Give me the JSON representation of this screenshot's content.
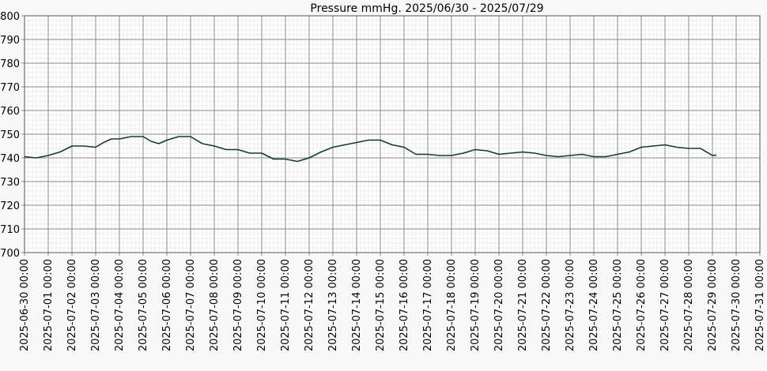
{
  "chart_data": {
    "type": "line",
    "title": "Pressure mmHg. 2025/06/30 - 2025/07/29",
    "xlabel": "",
    "ylabel": "",
    "ylim": [
      700,
      800
    ],
    "yticks": [
      "700",
      "710",
      "720",
      "730",
      "740",
      "750",
      "760",
      "770",
      "780",
      "790",
      "800"
    ],
    "xticks": [
      "2025-06-30 00:00",
      "2025-07-01 00:00",
      "2025-07-02 00:00",
      "2025-07-03 00:00",
      "2025-07-04 00:00",
      "2025-07-05 00:00",
      "2025-07-06 00:00",
      "2025-07-07 00:00",
      "2025-07-08 00:00",
      "2025-07-09 00:00",
      "2025-07-10 00:00",
      "2025-07-11 00:00",
      "2025-07-12 00:00",
      "2025-07-13 00:00",
      "2025-07-14 00:00",
      "2025-07-15 00:00",
      "2025-07-16 00:00",
      "2025-07-17 00:00",
      "2025-07-18 00:00",
      "2025-07-19 00:00",
      "2025-07-20 00:00",
      "2025-07-21 00:00",
      "2025-07-22 00:00",
      "2025-07-23 00:00",
      "2025-07-24 00:00",
      "2025-07-25 00:00",
      "2025-07-26 00:00",
      "2025-07-27 00:00",
      "2025-07-28 00:00",
      "2025-07-29 00:00",
      "2025-07-30 00:00",
      "2025-07-31 00:00"
    ],
    "grid": true,
    "line_color": "#0b3d3a",
    "series": [
      {
        "x": [
          "2025-06-30 00:00",
          "2025-06-30 12:00",
          "2025-07-01 00:00",
          "2025-07-01 12:00",
          "2025-07-02 00:00",
          "2025-07-02 12:00",
          "2025-07-03 00:00",
          "2025-07-03 08:00",
          "2025-07-03 16:00",
          "2025-07-04 00:00",
          "2025-07-04 12:00",
          "2025-07-05 00:00",
          "2025-07-05 08:00",
          "2025-07-05 16:00",
          "2025-07-06 00:00",
          "2025-07-06 12:00",
          "2025-07-07 00:00",
          "2025-07-07 12:00",
          "2025-07-08 00:00",
          "2025-07-08 12:00",
          "2025-07-09 00:00",
          "2025-07-09 12:00",
          "2025-07-10 00:00",
          "2025-07-10 12:00",
          "2025-07-11 00:00",
          "2025-07-11 12:00",
          "2025-07-12 00:00",
          "2025-07-12 12:00",
          "2025-07-13 00:00",
          "2025-07-13 12:00",
          "2025-07-14 00:00",
          "2025-07-14 12:00",
          "2025-07-15 00:00",
          "2025-07-15 12:00",
          "2025-07-16 00:00",
          "2025-07-16 12:00",
          "2025-07-17 00:00",
          "2025-07-17 12:00",
          "2025-07-18 00:00",
          "2025-07-18 12:00",
          "2025-07-19 00:00",
          "2025-07-19 12:00",
          "2025-07-20 00:00",
          "2025-07-20 12:00",
          "2025-07-21 00:00",
          "2025-07-21 12:00",
          "2025-07-22 00:00",
          "2025-07-22 12:00",
          "2025-07-23 00:00",
          "2025-07-23 12:00",
          "2025-07-24 00:00",
          "2025-07-24 12:00",
          "2025-07-25 00:00",
          "2025-07-25 12:00",
          "2025-07-26 00:00",
          "2025-07-26 12:00",
          "2025-07-27 00:00",
          "2025-07-27 12:00",
          "2025-07-28 00:00",
          "2025-07-28 12:00",
          "2025-07-29 00:00",
          "2025-07-29 04:00"
        ],
        "values": [
          740.5,
          740,
          741,
          742.5,
          745,
          745,
          744.5,
          746.5,
          748,
          748,
          749,
          749,
          747,
          746,
          747.5,
          749,
          749,
          746,
          745,
          743.5,
          743.5,
          742,
          742,
          739.5,
          739.5,
          738.5,
          740,
          742.5,
          744.5,
          745.5,
          746.5,
          747.5,
          747.5,
          745.5,
          744.5,
          741.5,
          741.5,
          741,
          741,
          742,
          743.5,
          743,
          741.5,
          742,
          742.5,
          742,
          741,
          740.5,
          741,
          741.5,
          740.5,
          740.5,
          741.5,
          742.5,
          744.5,
          745,
          745.5,
          744.5,
          744,
          744,
          741,
          741.2
        ]
      }
    ]
  }
}
